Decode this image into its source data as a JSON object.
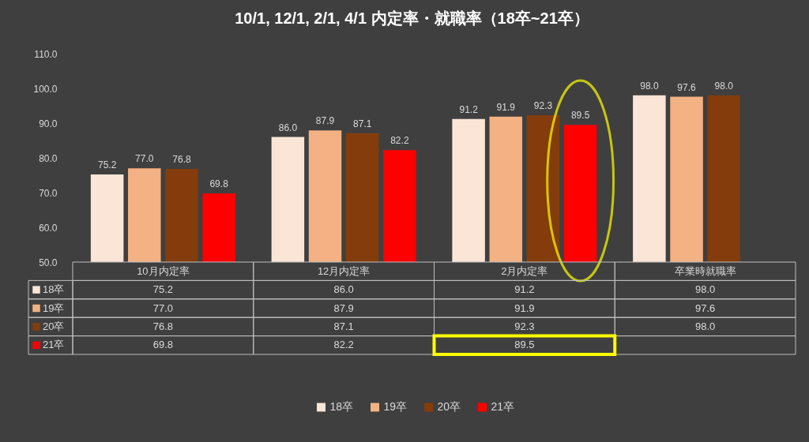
{
  "chart_data": {
    "type": "bar",
    "title": "10/1, 12/1, 2/1, 4/1 内定率・就職率（18卒~21卒）",
    "categories": [
      "10月内定率",
      "12月内定率",
      "2月内定率",
      "卒業時就職率"
    ],
    "series": [
      {
        "name": "18卒",
        "color": "#fbe5d6",
        "values": [
          75.2,
          86.0,
          91.2,
          98.0
        ],
        "value_labels": [
          "75.2",
          "86.0",
          "91.2",
          "98.0"
        ]
      },
      {
        "name": "19卒",
        "color": "#f4b183",
        "values": [
          77.0,
          87.9,
          91.9,
          97.6
        ],
        "value_labels": [
          "77.0",
          "87.9",
          "91.9",
          "97.6"
        ]
      },
      {
        "name": "20卒",
        "color": "#843c0c",
        "values": [
          76.8,
          87.1,
          92.3,
          98.0
        ],
        "value_labels": [
          "76.8",
          "87.1",
          "92.3",
          "98.0"
        ]
      },
      {
        "name": "21卒",
        "color": "#ff0000",
        "values": [
          69.8,
          82.2,
          89.5,
          null
        ],
        "value_labels": [
          "69.8",
          "82.2",
          "89.5",
          null
        ]
      }
    ],
    "ylim": [
      50,
      110
    ],
    "yticks": [
      {
        "value": 50,
        "label": "50.0"
      },
      {
        "value": 60,
        "label": "60.0"
      },
      {
        "value": 70,
        "label": "70.0"
      },
      {
        "value": 80,
        "label": "80.0"
      },
      {
        "value": 90,
        "label": "90.0"
      },
      {
        "value": 100,
        "label": "100.0"
      },
      {
        "value": 110,
        "label": "110.0"
      }
    ],
    "legend": "bottom"
  }
}
